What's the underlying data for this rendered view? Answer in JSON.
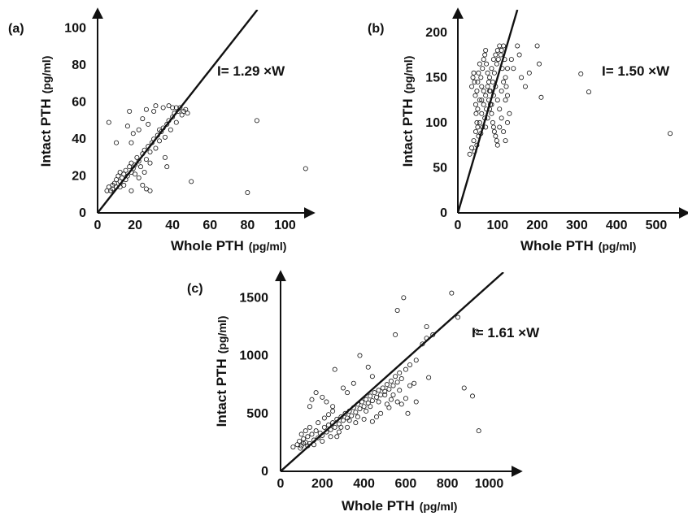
{
  "chart_data": [
    {
      "type": "scatter",
      "panel": "(a)",
      "xlabel": "Whole PTH",
      "xunit": "(pg/ml)",
      "ylabel": "Intact PTH",
      "yunit": "(pg/ml)",
      "xlim": [
        0,
        115
      ],
      "ylim": [
        0,
        110
      ],
      "xticks": [
        0,
        20,
        40,
        60,
        80,
        100
      ],
      "yticks": [
        0,
        20,
        40,
        60,
        80,
        100
      ],
      "annotation": "I= 1.29 ×W",
      "fit_slope": 1.29,
      "grid": false,
      "points": [
        [
          5,
          12
        ],
        [
          6,
          14
        ],
        [
          7,
          12
        ],
        [
          8,
          15
        ],
        [
          8,
          13
        ],
        [
          9,
          16
        ],
        [
          10,
          18
        ],
        [
          10,
          14
        ],
        [
          11,
          20
        ],
        [
          12,
          17
        ],
        [
          12,
          22
        ],
        [
          13,
          19
        ],
        [
          14,
          21
        ],
        [
          15,
          23
        ],
        [
          15,
          18
        ],
        [
          16,
          20
        ],
        [
          17,
          25
        ],
        [
          18,
          22
        ],
        [
          18,
          27
        ],
        [
          19,
          24
        ],
        [
          20,
          26
        ],
        [
          20,
          21
        ],
        [
          21,
          30
        ],
        [
          22,
          28
        ],
        [
          23,
          25
        ],
        [
          24,
          32
        ],
        [
          25,
          34
        ],
        [
          26,
          29
        ],
        [
          27,
          36
        ],
        [
          28,
          33
        ],
        [
          29,
          38
        ],
        [
          30,
          40
        ],
        [
          31,
          35
        ],
        [
          32,
          42
        ],
        [
          33,
          39
        ],
        [
          34,
          44
        ],
        [
          35,
          46
        ],
        [
          36,
          41
        ],
        [
          37,
          48
        ],
        [
          38,
          50
        ],
        [
          39,
          45
        ],
        [
          40,
          52
        ],
        [
          41,
          54
        ],
        [
          42,
          49
        ],
        [
          43,
          55
        ],
        [
          44,
          57
        ],
        [
          45,
          53
        ],
        [
          46,
          55
        ],
        [
          47,
          56
        ],
        [
          48,
          54
        ],
        [
          17,
          55
        ],
        [
          16,
          47
        ],
        [
          18,
          38
        ],
        [
          19,
          43
        ],
        [
          22,
          45
        ],
        [
          24,
          51
        ],
        [
          26,
          56
        ],
        [
          27,
          48
        ],
        [
          30,
          55
        ],
        [
          31,
          58
        ],
        [
          33,
          45
        ],
        [
          35,
          57
        ],
        [
          38,
          58
        ],
        [
          40,
          57
        ],
        [
          42,
          57
        ],
        [
          6,
          49
        ],
        [
          10,
          38
        ],
        [
          12,
          14
        ],
        [
          14,
          15
        ],
        [
          18,
          12
        ],
        [
          24,
          15
        ],
        [
          26,
          13
        ],
        [
          28,
          12
        ],
        [
          36,
          30
        ],
        [
          37,
          25
        ],
        [
          50,
          17
        ],
        [
          80,
          11
        ],
        [
          85,
          50
        ],
        [
          111,
          24
        ],
        [
          22,
          19
        ],
        [
          25,
          22
        ],
        [
          28,
          27
        ]
      ]
    },
    {
      "type": "scatter",
      "panel": "(b)",
      "xlabel": "Whole PTH",
      "xunit": "(pg/ml)",
      "ylabel": "Intact PTH",
      "yunit": "(pg/ml)",
      "xlim": [
        0,
        580
      ],
      "ylim": [
        0,
        225
      ],
      "xticks": [
        0,
        100,
        200,
        300,
        400,
        500
      ],
      "yticks": [
        0,
        50,
        100,
        150,
        200
      ],
      "annotation": "I= 1.50 ×W",
      "fit_slope": 1.5,
      "grid": false,
      "points": [
        [
          30,
          65
        ],
        [
          35,
          72
        ],
        [
          40,
          80
        ],
        [
          42,
          68
        ],
        [
          45,
          90
        ],
        [
          48,
          75
        ],
        [
          50,
          95
        ],
        [
          52,
          85
        ],
        [
          55,
          100
        ],
        [
          58,
          88
        ],
        [
          60,
          110
        ],
        [
          62,
          95
        ],
        [
          65,
          120
        ],
        [
          68,
          105
        ],
        [
          70,
          130
        ],
        [
          72,
          115
        ],
        [
          75,
          140
        ],
        [
          78,
          125
        ],
        [
          80,
          150
        ],
        [
          82,
          135
        ],
        [
          85,
          160
        ],
        [
          88,
          145
        ],
        [
          90,
          170
        ],
        [
          92,
          155
        ],
        [
          95,
          175
        ],
        [
          98,
          165
        ],
        [
          100,
          180
        ],
        [
          102,
          170
        ],
        [
          105,
          185
        ],
        [
          108,
          175
        ],
        [
          110,
          180
        ],
        [
          112,
          160
        ],
        [
          115,
          185
        ],
        [
          118,
          170
        ],
        [
          120,
          150
        ],
        [
          122,
          140
        ],
        [
          125,
          130
        ],
        [
          45,
          120
        ],
        [
          48,
          135
        ],
        [
          50,
          145
        ],
        [
          52,
          155
        ],
        [
          55,
          165
        ],
        [
          58,
          150
        ],
        [
          60,
          140
        ],
        [
          62,
          160
        ],
        [
          65,
          170
        ],
        [
          68,
          175
        ],
        [
          70,
          180
        ],
        [
          72,
          165
        ],
        [
          75,
          155
        ],
        [
          78,
          145
        ],
        [
          80,
          135
        ],
        [
          82,
          120
        ],
        [
          85,
          110
        ],
        [
          88,
          100
        ],
        [
          90,
          95
        ],
        [
          92,
          90
        ],
        [
          95,
          85
        ],
        [
          98,
          80
        ],
        [
          100,
          75
        ],
        [
          105,
          95
        ],
        [
          110,
          105
        ],
        [
          115,
          90
        ],
        [
          120,
          80
        ],
        [
          125,
          100
        ],
        [
          130,
          110
        ],
        [
          135,
          170
        ],
        [
          140,
          160
        ],
        [
          150,
          185
        ],
        [
          155,
          175
        ],
        [
          160,
          150
        ],
        [
          170,
          140
        ],
        [
          180,
          155
        ],
        [
          200,
          185
        ],
        [
          205,
          165
        ],
        [
          210,
          128
        ],
        [
          310,
          154
        ],
        [
          330,
          134
        ],
        [
          535,
          88
        ],
        [
          35,
          140
        ],
        [
          38,
          150
        ],
        [
          40,
          155
        ],
        [
          42,
          145
        ],
        [
          44,
          130
        ],
        [
          46,
          110
        ],
        [
          48,
          100
        ],
        [
          50,
          115
        ],
        [
          55,
          125
        ],
        [
          60,
          125
        ],
        [
          65,
          135
        ],
        [
          70,
          95
        ],
        [
          75,
          105
        ],
        [
          80,
          115
        ],
        [
          85,
          120
        ],
        [
          90,
          130
        ],
        [
          95,
          140
        ],
        [
          100,
          125
        ],
        [
          105,
          115
        ],
        [
          110,
          135
        ],
        [
          115,
          145
        ],
        [
          120,
          125
        ],
        [
          125,
          160
        ]
      ]
    },
    {
      "type": "scatter",
      "panel": "(c)",
      "xlabel": "Whole PTH",
      "xunit": "(pg/ml)",
      "ylabel": "Intact PTH",
      "yunit": "(pg/ml)",
      "xlim": [
        0,
        1150
      ],
      "ylim": [
        0,
        1720
      ],
      "xticks": [
        0,
        200,
        400,
        600,
        800,
        1000
      ],
      "yticks": [
        0,
        500,
        1000,
        1500
      ],
      "annotation": "I= 1.61 ×W",
      "fit_slope": 1.61,
      "grid": false,
      "points": [
        [
          60,
          210
        ],
        [
          80,
          230
        ],
        [
          90,
          260
        ],
        [
          100,
          220
        ],
        [
          110,
          280
        ],
        [
          120,
          250
        ],
        [
          130,
          300
        ],
        [
          140,
          240
        ],
        [
          150,
          320
        ],
        [
          160,
          270
        ],
        [
          170,
          350
        ],
        [
          180,
          290
        ],
        [
          190,
          330
        ],
        [
          200,
          310
        ],
        [
          210,
          380
        ],
        [
          220,
          340
        ],
        [
          230,
          400
        ],
        [
          240,
          360
        ],
        [
          250,
          420
        ],
        [
          260,
          380
        ],
        [
          270,
          450
        ],
        [
          280,
          410
        ],
        [
          290,
          470
        ],
        [
          300,
          440
        ],
        [
          310,
          500
        ],
        [
          320,
          460
        ],
        [
          330,
          520
        ],
        [
          340,
          480
        ],
        [
          350,
          550
        ],
        [
          360,
          510
        ],
        [
          370,
          580
        ],
        [
          380,
          540
        ],
        [
          390,
          600
        ],
        [
          400,
          560
        ],
        [
          410,
          620
        ],
        [
          420,
          590
        ],
        [
          430,
          650
        ],
        [
          440,
          610
        ],
        [
          450,
          680
        ],
        [
          460,
          640
        ],
        [
          470,
          700
        ],
        [
          480,
          660
        ],
        [
          490,
          720
        ],
        [
          500,
          690
        ],
        [
          510,
          750
        ],
        [
          520,
          710
        ],
        [
          530,
          780
        ],
        [
          540,
          740
        ],
        [
          550,
          820
        ],
        [
          560,
          770
        ],
        [
          570,
          850
        ],
        [
          580,
          800
        ],
        [
          600,
          880
        ],
        [
          620,
          920
        ],
        [
          650,
          960
        ],
        [
          680,
          1100
        ],
        [
          700,
          1150
        ],
        [
          550,
          1180
        ],
        [
          560,
          1390
        ],
        [
          590,
          1500
        ],
        [
          700,
          1250
        ],
        [
          730,
          1180
        ],
        [
          820,
          1540
        ],
        [
          850,
          1330
        ],
        [
          940,
          1210
        ],
        [
          880,
          720
        ],
        [
          920,
          650
        ],
        [
          950,
          350
        ],
        [
          710,
          810
        ],
        [
          640,
          760
        ],
        [
          600,
          630
        ],
        [
          580,
          580
        ],
        [
          520,
          550
        ],
        [
          480,
          500
        ],
        [
          460,
          470
        ],
        [
          440,
          430
        ],
        [
          400,
          450
        ],
        [
          360,
          420
        ],
        [
          320,
          380
        ],
        [
          280,
          340
        ],
        [
          240,
          300
        ],
        [
          200,
          260
        ],
        [
          160,
          230
        ],
        [
          130,
          220
        ],
        [
          110,
          240
        ],
        [
          95,
          200
        ],
        [
          140,
          560
        ],
        [
          150,
          620
        ],
        [
          170,
          680
        ],
        [
          200,
          640
        ],
        [
          220,
          600
        ],
        [
          250,
          560
        ],
        [
          260,
          880
        ],
        [
          300,
          720
        ],
        [
          320,
          680
        ],
        [
          350,
          760
        ],
        [
          380,
          1000
        ],
        [
          420,
          900
        ],
        [
          440,
          820
        ],
        [
          500,
          660
        ],
        [
          530,
          620
        ],
        [
          560,
          600
        ],
        [
          610,
          500
        ],
        [
          650,
          600
        ],
        [
          100,
          320
        ],
        [
          120,
          350
        ],
        [
          140,
          380
        ],
        [
          180,
          420
        ],
        [
          210,
          460
        ],
        [
          230,
          490
        ],
        [
          250,
          520
        ],
        [
          270,
          300
        ],
        [
          290,
          380
        ],
        [
          330,
          440
        ],
        [
          370,
          470
        ],
        [
          410,
          520
        ],
        [
          430,
          560
        ],
        [
          470,
          600
        ],
        [
          510,
          580
        ],
        [
          540,
          660
        ],
        [
          570,
          700
        ],
        [
          620,
          740
        ]
      ]
    }
  ]
}
